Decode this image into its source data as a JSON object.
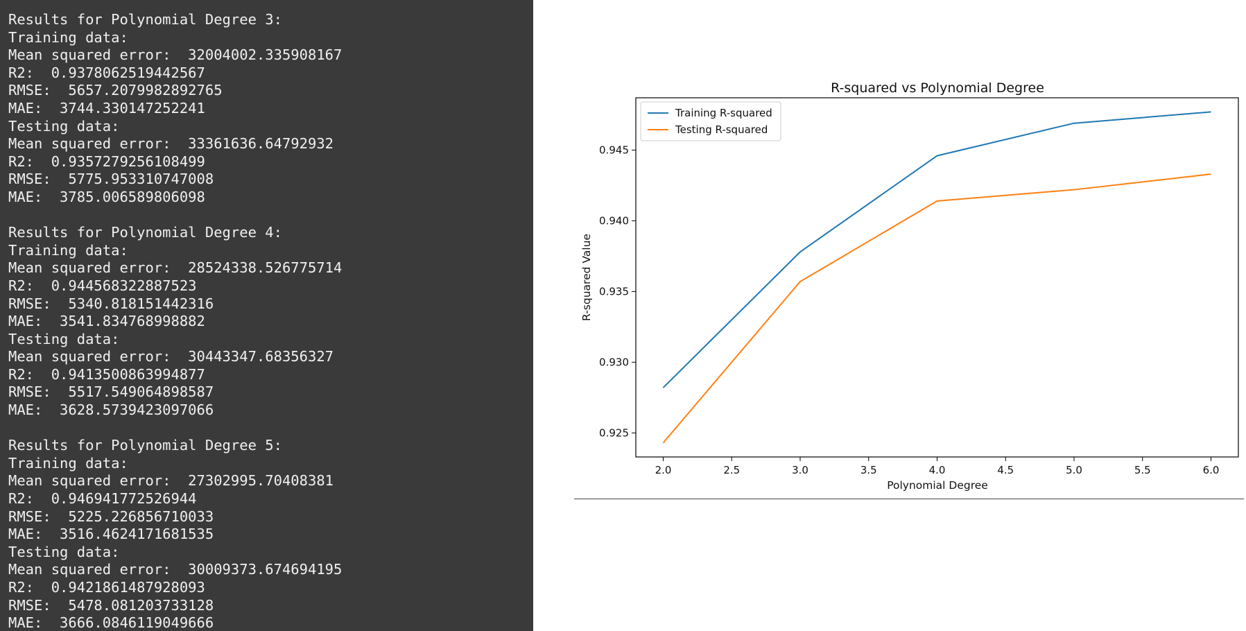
{
  "console": {
    "blocks": [
      {
        "header": "Results for Polynomial Degree 3:",
        "train_label": "Training data:",
        "train": {
          "mse": "Mean squared error:  32004002.335908167",
          "r2": "R2:  0.9378062519442567",
          "rmse": "RMSE:  5657.2079982892765",
          "mae": "MAE:  3744.330147252241"
        },
        "test_label": "Testing data:",
        "test": {
          "mse": "Mean squared error:  33361636.64792932",
          "r2": "R2:  0.9357279256108499",
          "rmse": "RMSE:  5775.953310747008",
          "mae": "MAE:  3785.006589806098"
        }
      },
      {
        "header": "Results for Polynomial Degree 4:",
        "train_label": "Training data:",
        "train": {
          "mse": "Mean squared error:  28524338.526775714",
          "r2": "R2:  0.944568322887523",
          "rmse": "RMSE:  5340.818151442316",
          "mae": "MAE:  3541.834768998882"
        },
        "test_label": "Testing data:",
        "test": {
          "mse": "Mean squared error:  30443347.68356327",
          "r2": "R2:  0.9413500863994877",
          "rmse": "RMSE:  5517.549064898587",
          "mae": "MAE:  3628.5739423097066"
        }
      },
      {
        "header": "Results for Polynomial Degree 5:",
        "train_label": "Training data:",
        "train": {
          "mse": "Mean squared error:  27302995.70408381",
          "r2": "R2:  0.946941772526944",
          "rmse": "RMSE:  5225.226856710033",
          "mae": "MAE:  3516.4624171681535"
        },
        "test_label": "Testing data:",
        "test": {
          "mse": "Mean squared error:  30009373.674694195",
          "r2": "R2:  0.9421861487928093",
          "rmse": "RMSE:  5478.081203733128",
          "mae": "MAE:  3666.0846119049666"
        }
      }
    ]
  },
  "chart_data": {
    "type": "line",
    "title": "R-squared vs Polynomial Degree",
    "xlabel": "Polynomial Degree",
    "ylabel": "R-squared Value",
    "x": [
      2.0,
      3.0,
      4.0,
      5.0,
      6.0
    ],
    "series": [
      {
        "name": "Training R-squared",
        "color": "#1f77b4",
        "values": [
          0.9282,
          0.9378,
          0.9446,
          0.9469,
          0.9477
        ]
      },
      {
        "name": "Testing R-squared",
        "color": "#ff7f0e",
        "values": [
          0.9243,
          0.9357,
          0.9414,
          0.9422,
          0.9433
        ]
      }
    ],
    "xlim": [
      1.8,
      6.2
    ],
    "ylim": [
      0.9233,
      0.9487
    ],
    "xticks": [
      "2.0",
      "2.5",
      "3.0",
      "3.5",
      "4.0",
      "4.5",
      "5.0",
      "5.5",
      "6.0"
    ],
    "yticks": [
      "0.925",
      "0.930",
      "0.935",
      "0.940",
      "0.945"
    ],
    "legend": "top-left",
    "grid": false
  }
}
